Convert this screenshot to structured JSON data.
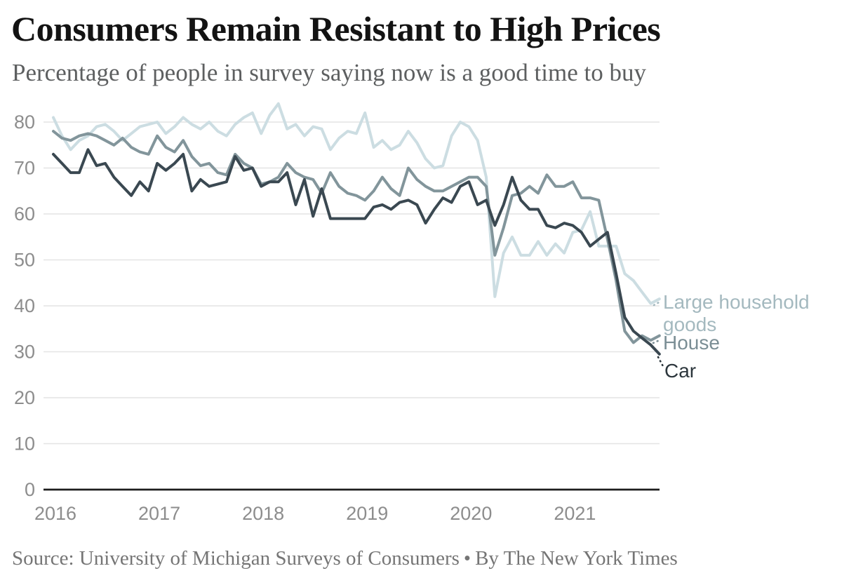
{
  "header": {
    "title": "Consumers Remain Resistant to High Prices",
    "subtitle": "Percentage of people in survey saying now is a good time to buy"
  },
  "footer": {
    "source": "Source: University of Michigan Surveys of Consumers",
    "bullet": "•",
    "byline": "By The New York Times"
  },
  "colors": {
    "title": "#131313",
    "subtitle": "#5d5f60",
    "axis_labels": "#8d8d8d",
    "gridline": "#e4e4e4",
    "baseline": "#1d1d1d",
    "source_text": "#757575"
  },
  "chart_data": {
    "type": "line",
    "title": "Consumers Remain Resistant to High Prices",
    "subtitle": "Percentage of people in survey saying now is a good time to buy",
    "x_unit": "month",
    "x_start": "2016-01",
    "x_end": "2021-11",
    "x_tick_labels": [
      "2016",
      "2017",
      "2018",
      "2019",
      "2020",
      "2021"
    ],
    "ylim": [
      0,
      80
    ],
    "y_ticks": [
      0,
      10,
      20,
      30,
      40,
      50,
      60,
      70,
      80
    ],
    "grid": "horizontal-only",
    "legend_position": "end-of-line-labels-right",
    "series": [
      {
        "id": "lhg",
        "name": "Large household goods",
        "label_lines": [
          "Large household",
          "goods"
        ],
        "color": "#ccdde2",
        "label_color": "#a4b9bf",
        "values": [
          81,
          77,
          74,
          76,
          77,
          79,
          79.5,
          78,
          76,
          77.5,
          79,
          79.5,
          80,
          77.5,
          79,
          81,
          79.5,
          78.5,
          80,
          78,
          77,
          79.5,
          81,
          82,
          77.5,
          81.5,
          84,
          78.5,
          79.5,
          77,
          79,
          78.5,
          74,
          76.5,
          78,
          77.5,
          82,
          74.5,
          76,
          74,
          75,
          78,
          75.5,
          72,
          70,
          70.5,
          77,
          80,
          79,
          76,
          68,
          42,
          51.5,
          55,
          51,
          51,
          54,
          51,
          53.5,
          51.5,
          56,
          56.5,
          60.5,
          53,
          53,
          53,
          47,
          45.5,
          43,
          40.5,
          41.5
        ]
      },
      {
        "id": "house",
        "name": "House",
        "label_lines": [
          "House"
        ],
        "color": "#82959b",
        "label_color": "#7b8e95",
        "values": [
          78,
          76.5,
          76,
          77,
          77.5,
          77,
          76,
          75,
          76.5,
          74.5,
          73.5,
          73,
          77,
          74.5,
          73.5,
          76,
          72.5,
          70.5,
          71,
          69,
          68.5,
          73,
          71,
          70,
          66.5,
          67,
          68,
          71,
          69,
          68,
          67.5,
          64.5,
          69,
          66,
          64.5,
          64,
          63,
          65,
          68,
          65.5,
          64,
          70,
          67.5,
          66,
          65,
          65,
          66,
          67,
          68,
          68,
          66,
          51,
          57,
          64,
          64.5,
          66,
          64.5,
          68.5,
          66,
          66,
          67,
          63.5,
          63.5,
          63,
          54.5,
          45.5,
          34.5,
          32,
          33.5,
          32.5,
          33.5
        ]
      },
      {
        "id": "car",
        "name": "Car",
        "label_lines": [
          "Car"
        ],
        "color": "#3a4851",
        "label_color": "#2c363c",
        "values": [
          73,
          71,
          69,
          69,
          74,
          70.5,
          71,
          68,
          66,
          64,
          67,
          65,
          71,
          69.5,
          71,
          73,
          65,
          67.5,
          66,
          66.5,
          67,
          72.5,
          69.5,
          70,
          66,
          67,
          67,
          69,
          62,
          67.5,
          59.5,
          65.5,
          59,
          59,
          59,
          59,
          59,
          61.5,
          62,
          61,
          62.5,
          63,
          62,
          58,
          61,
          63.5,
          62.5,
          66,
          67,
          62,
          63,
          57.5,
          62,
          68,
          63,
          61,
          61,
          57.5,
          57,
          58,
          57.5,
          56,
          53,
          54.5,
          56,
          47,
          37.5,
          34.5,
          33,
          31.5,
          29.5
        ]
      }
    ]
  }
}
